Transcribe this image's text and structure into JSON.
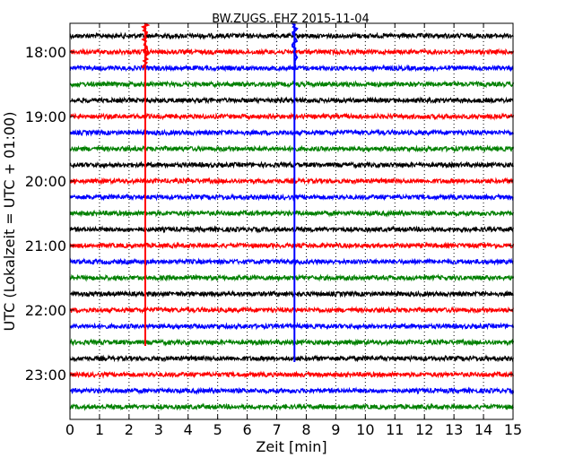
{
  "chart_data": {
    "type": "line",
    "title": "BW.ZUGS..EHZ 2015-11-04",
    "xlabel": "Zeit  [min]",
    "ylabel": "UTC (Lokalzeit = UTC + 01:00)",
    "xlim": [
      0,
      15
    ],
    "x_ticks": [
      "0",
      "1",
      "2",
      "3",
      "4",
      "5",
      "6",
      "7",
      "8",
      "9",
      "10",
      "11",
      "12",
      "13",
      "14",
      "15"
    ],
    "y_ticks": [
      "18:00",
      "19:00",
      "20:00",
      "21:00",
      "22:00",
      "23:00"
    ],
    "grid": "vertical dotted",
    "trace_colors": [
      "#000000",
      "#ff0000",
      "#0000ff",
      "#008000"
    ],
    "trace_interval_minutes": 15,
    "start_time": "17:45",
    "trace_count": 24,
    "events": [
      {
        "color": "#ff0000",
        "time_min": 2.55,
        "from": "17:45",
        "to": "22:30"
      },
      {
        "color": "#0000ff",
        "time_min": 7.6,
        "from": "17:45",
        "to": "22:45"
      }
    ]
  }
}
